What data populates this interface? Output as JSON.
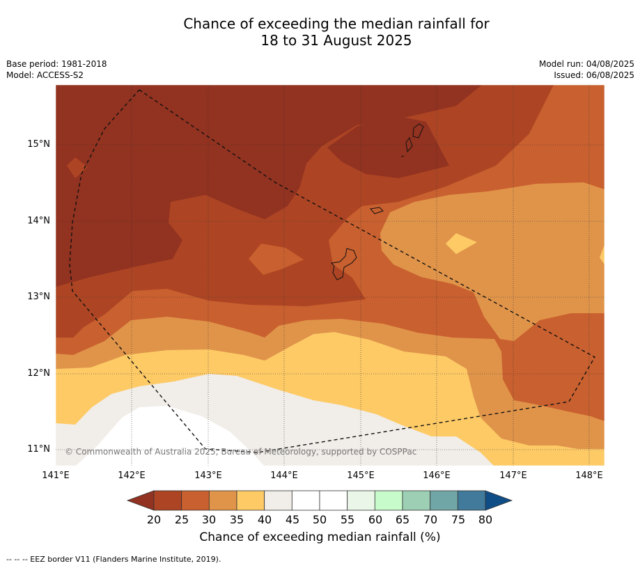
{
  "title": {
    "line1": "Chance of exceeding the median rainfall for",
    "line2": "18 to 31 August 2025"
  },
  "metadata": {
    "base_period": "Base period: 1981-2018",
    "model": "Model: ACCESS-S2",
    "model_run": "Model run: 04/08/2025",
    "issued": "Issued: 06/08/2025"
  },
  "map": {
    "lat_ticks": [
      "15°N",
      "14°N",
      "13°N",
      "12°N",
      "11°N"
    ],
    "lon_ticks": [
      "141°E",
      "142°E",
      "143°E",
      "144°E",
      "145°E",
      "146°E",
      "147°E",
      "148°E"
    ],
    "copyright": "© Commonwealth of Australia 2025, Bureau of Meteorology, supported by COSPPac",
    "extent": {
      "lon": [
        141,
        148.2
      ],
      "lat": [
        10.8,
        15.8
      ]
    }
  },
  "colorbar": {
    "labels": [
      "20",
      "25",
      "30",
      "35",
      "40",
      "45",
      "50",
      "55",
      "60",
      "65",
      "70",
      "75",
      "80"
    ],
    "colors": [
      "#923220",
      "#ad4524",
      "#c9602f",
      "#e0944a",
      "#fdca66",
      "#f1ede8",
      "#ffffff",
      "#ffffff",
      "#eaf7e8",
      "#c8fbcc",
      "#9dcfb5",
      "#70a6a5",
      "#417a9a",
      "#0f4d86"
    ],
    "title": "Chance of exceeding median rainfall (%)"
  },
  "footnote": "--  --  -- EEZ border V11 (Flanders Marine Institute, 2019)."
}
